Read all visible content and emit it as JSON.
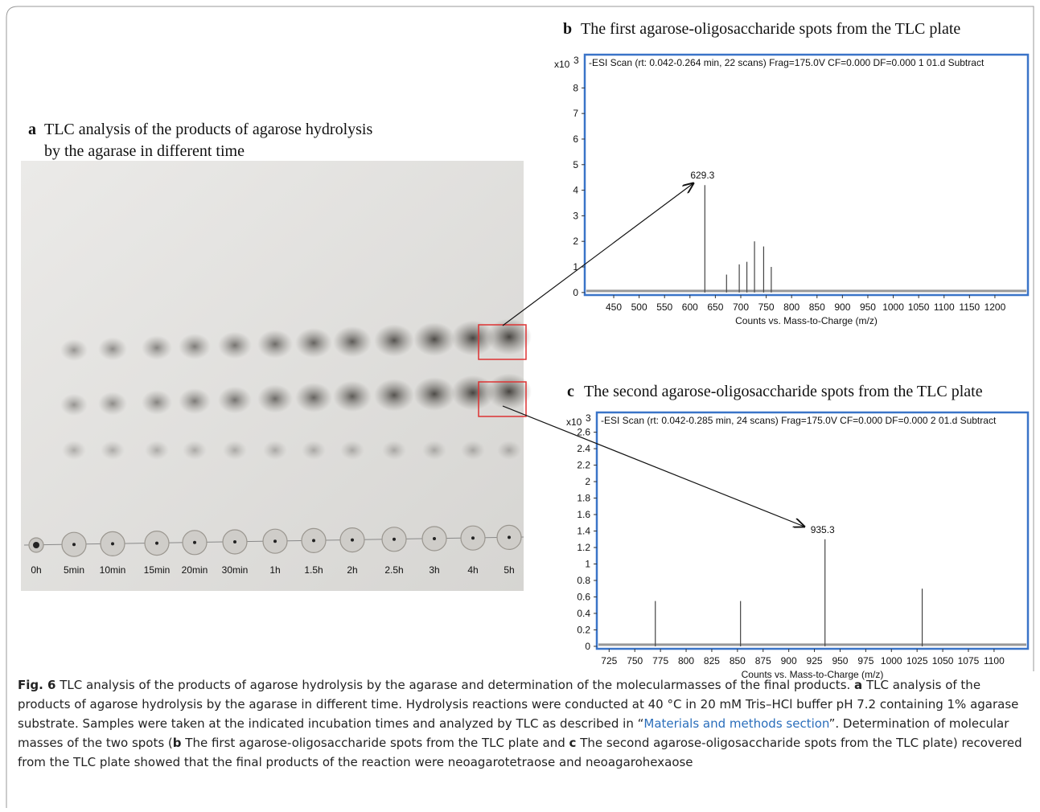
{
  "figure": {
    "panel_a": {
      "letter": "a",
      "title_lines": [
        "TLC analysis of the products of agarose hydrolysis",
        "by the agarase in different time"
      ],
      "lanes": [
        "0h",
        "5min",
        "10min",
        "15min",
        "20min",
        "30min",
        "1h",
        "1.5h",
        "2h",
        "2.5h",
        "3h",
        "4h",
        "5h"
      ]
    },
    "panel_b": {
      "letter": "b",
      "title": "The first agarose-oligosaccharide spots from the TLC plate",
      "scan_info": "-ESI Scan (rt: 0.042-0.264 min, 22 scans) Frag=175.0V CF=0.000 DF=0.000 1   01.d  Subtract",
      "y_multiplier": "x10",
      "y_exponent": "3",
      "x_label": "Counts vs. Mass-to-Charge (m/z)",
      "xlim": [
        393,
        1265
      ],
      "ylim": [
        -0.1,
        9.3
      ],
      "xticks": [
        450,
        500,
        550,
        600,
        650,
        700,
        750,
        800,
        850,
        900,
        950,
        1000,
        1050,
        1100,
        1150,
        1200
      ],
      "yticks": [
        0,
        1,
        2,
        3,
        4,
        5,
        6,
        7,
        8
      ],
      "peaks": {
        "x": [
          629.3,
          672,
          697,
          712,
          727,
          745,
          760
        ],
        "y": [
          4.2,
          0.7,
          1.1,
          1.2,
          2.0,
          1.8,
          1.0
        ]
      },
      "peak_label": "629.3",
      "peak_label_index": 0
    },
    "panel_c": {
      "letter": "c",
      "title": "The second agarose-oligosaccharide spots from the TLC plate",
      "scan_info": "-ESI Scan (rt: 0.042-0.285 min, 24 scans) Frag=175.0V CF=0.000 DF=0.000 2   01.d  Subtract",
      "y_multiplier": "x10",
      "y_exponent": "3",
      "x_label": "Counts vs. Mass-to-Charge (m/z)",
      "xlim": [
        713,
        1133
      ],
      "ylim": [
        -0.03,
        2.84
      ],
      "xticks": [
        725,
        750,
        775,
        800,
        825,
        850,
        875,
        900,
        925,
        950,
        975,
        1000,
        1025,
        1050,
        1075,
        1100
      ],
      "yticks": [
        0,
        0.2,
        0.4,
        0.6,
        0.8,
        1,
        1.2,
        1.4,
        1.6,
        1.8,
        2,
        2.2,
        2.4,
        2.6
      ],
      "peaks": {
        "x": [
          770,
          853,
          935.3,
          1030
        ],
        "y": [
          0.55,
          0.55,
          1.3,
          0.7
        ]
      },
      "peak_label": "935.3",
      "peak_label_index": 2
    },
    "caption": {
      "fig_label": "Fig. 6",
      "text1": " TLC analysis of the products of agarose hydrolysis by the agarase and determination of the molecularmasses of the final products. ",
      "bold_a": "a",
      "text2": " TLC analysis of the products of agarose hydrolysis by the agarase in different time. Hydrolysis reactions were conducted at 40 °C in 20 mM Tris–HCl buffer pH 7.2 containing 1% agarase substrate. Samples were taken at the indicated incubation times and analyzed by TLC as described in “",
      "link": "Materials and methods section",
      "text3": "”. Determination of molecular masses of the two spots (",
      "bold_b": "b",
      "text4": " The first agarose-oligosaccharide spots from the TLC plate and ",
      "bold_c": "c",
      "text5": " The second agarose-oligosaccharide spots from the TLC plate) recovered from the TLC plate showed that the final products of the reaction were neoagarotetraose and neoagarohexaose"
    }
  }
}
